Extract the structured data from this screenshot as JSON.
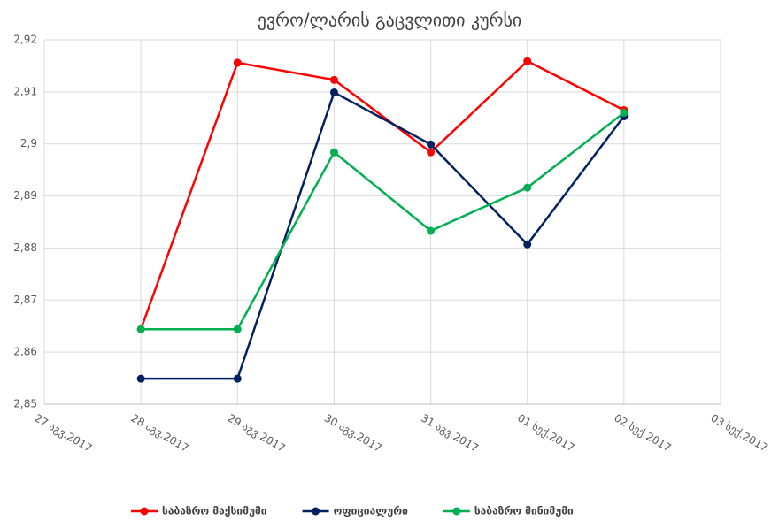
{
  "chart_data": {
    "type": "line",
    "title": "ევრო/ლარის გაცვლითი კურსი",
    "categories": [
      "27 აგვ.2017",
      "28 აგვ.2017",
      "29 აგვ.2017",
      "30 აგვ.2017",
      "31 აგვ.2017",
      "01 სექ.2017",
      "02 სექ.2017",
      "03 სექ.2017"
    ],
    "series": [
      {
        "name": "საბაზრო მაქსიმუმი",
        "color": "#ff0000",
        "values": [
          null,
          2.8644,
          2.9156,
          2.9123,
          2.8984,
          2.9159,
          2.9065,
          null
        ]
      },
      {
        "name": "ოფიციალური",
        "color": "#002060",
        "values": [
          null,
          2.8549,
          2.8549,
          2.9099,
          2.8999,
          2.8807,
          2.9053,
          null
        ]
      },
      {
        "name": "საბაზრო მინიმუმი",
        "color": "#00b050",
        "values": [
          null,
          2.8644,
          2.8644,
          2.8984,
          2.8833,
          2.8916,
          2.906,
          null
        ]
      }
    ],
    "ylim": [
      2.85,
      2.92
    ],
    "yticks": [
      {
        "value": 2.85,
        "label": "2,85"
      },
      {
        "value": 2.86,
        "label": "2,86"
      },
      {
        "value": 2.87,
        "label": "2,87"
      },
      {
        "value": 2.88,
        "label": "2,88"
      },
      {
        "value": 2.89,
        "label": "2,89"
      },
      {
        "value": 2.9,
        "label": "2,9"
      },
      {
        "value": 2.91,
        "label": "2,91"
      },
      {
        "value": 2.92,
        "label": "2,92"
      }
    ],
    "grid": true,
    "legend": "bottom"
  }
}
